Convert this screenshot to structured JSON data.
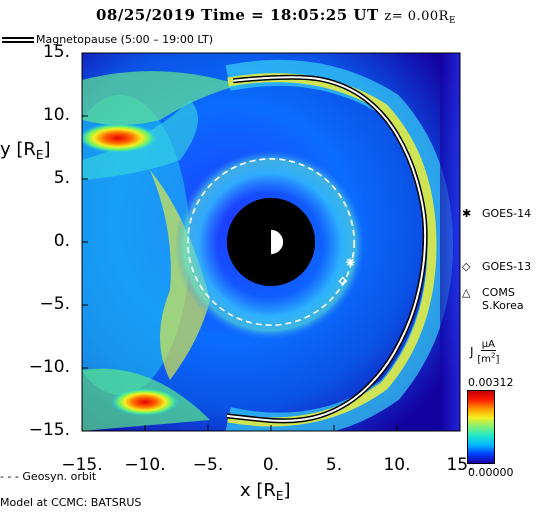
{
  "header": {
    "date": "08/25/2019",
    "time_label": "Time = 18:05:25 UT",
    "z_label": "z= 0.00R",
    "z_sub": "E"
  },
  "legend_top": {
    "magnetopause": "Magnetopause (5:00 – 19:00 LT)"
  },
  "legend_bottom": {
    "geosyn": "Geosyn. orbit",
    "model": "Model at CCMC: BATSRUS"
  },
  "satellites": [
    {
      "label": "GOES-14",
      "symbol": "✱"
    },
    {
      "label": "GOES-13",
      "symbol": "◇"
    },
    {
      "label": "COMS",
      "label2": "S.Korea",
      "symbol": "△"
    }
  ],
  "colorbar": {
    "title": "J",
    "unit_num": "µA",
    "unit_den": "m",
    "unit_exp": "2",
    "max_label": "0.00312",
    "min_label": "0.00000",
    "colors": [
      "#1a00a8",
      "#0044ff",
      "#00b7ff",
      "#22e8c8",
      "#7cf07a",
      "#f3f020",
      "#ff9a00",
      "#ff1a00",
      "#c40000"
    ]
  },
  "chart_data": {
    "type": "heatmap",
    "title": "08/25/2019 Time = 18:05:25 UT z= 0.00RE",
    "xlabel": "x [RE]",
    "ylabel": "y [RE]",
    "xlabel_text": "x [R",
    "ylabel_text": "y [R",
    "label_sub": "E",
    "xlim": [
      -15,
      15
    ],
    "ylim": [
      -15,
      15
    ],
    "x_ticks": [
      -15,
      -10,
      -5,
      0,
      5,
      10,
      15
    ],
    "y_ticks": [
      -15,
      -10,
      -5,
      0,
      5,
      10,
      15
    ],
    "x_tick_labels": [
      "−15.",
      "−10.",
      "−5.",
      "0.",
      "5.",
      "10.",
      "15."
    ],
    "y_tick_labels": [
      "−15.",
      "−10.",
      "−5.",
      "0.",
      "5.",
      "10.",
      "15."
    ],
    "geosynchronous_orbit_radius": 6.6,
    "earth_radius": 1.0,
    "inner_boundary_radius": 3.5,
    "magnetopause": [
      {
        "x": -3.0,
        "y": 12.8
      },
      {
        "x": 2.0,
        "y": 13.3
      },
      {
        "x": 6.0,
        "y": 12.5
      },
      {
        "x": 9.0,
        "y": 10.2
      },
      {
        "x": 11.0,
        "y": 6.8
      },
      {
        "x": 12.1,
        "y": 3.0
      },
      {
        "x": 12.3,
        "y": 0.0
      },
      {
        "x": 11.9,
        "y": -3.5
      },
      {
        "x": 10.8,
        "y": -7.0
      },
      {
        "x": 8.8,
        "y": -10.5
      },
      {
        "x": 5.8,
        "y": -13.2
      },
      {
        "x": 2.0,
        "y": -14.4
      },
      {
        "x": -3.5,
        "y": -13.8
      }
    ],
    "satellite_positions": [
      {
        "name": "GOES-14",
        "x": 6.3,
        "y": -1.6
      },
      {
        "name": "GOES-13",
        "x": 5.7,
        "y": -3.1
      }
    ],
    "color_range": [
      0.0,
      0.00312
    ]
  }
}
